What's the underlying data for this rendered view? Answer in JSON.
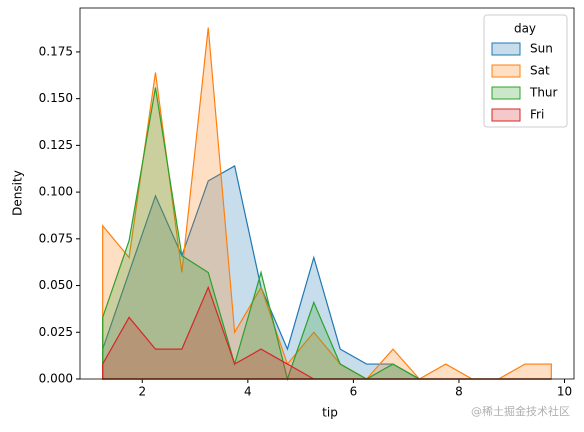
{
  "chart_data": {
    "type": "poly-histogram",
    "x_label": "tip",
    "y_label": "Density",
    "legend_title": "day",
    "legend_position": "upper right",
    "x": [
      1.25,
      1.75,
      2.25,
      2.75,
      3.25,
      3.75,
      4.25,
      4.75,
      5.25,
      5.75,
      6.25,
      6.75,
      7.25,
      7.75,
      8.25,
      8.75,
      9.25,
      9.75
    ],
    "series": [
      {
        "name": "Sun",
        "color": "#1f77b4",
        "values": [
          0.016,
          0.057,
          0.098,
          0.066,
          0.106,
          0.114,
          0.049,
          0.016,
          0.065,
          0.016,
          0.008,
          0.008,
          0,
          0,
          0,
          0,
          0,
          0
        ]
      },
      {
        "name": "Sat",
        "color": "#ff7f0e",
        "values": [
          0.082,
          0.065,
          0.164,
          0.057,
          0.188,
          0.025,
          0.049,
          0.008,
          0.025,
          0.008,
          0,
          0.016,
          0,
          0.008,
          0,
          0,
          0.008,
          0.008
        ]
      },
      {
        "name": "Thur",
        "color": "#2ca02c",
        "values": [
          0.033,
          0.074,
          0.156,
          0.066,
          0.057,
          0.008,
          0.057,
          0,
          0.041,
          0.008,
          0,
          0.008,
          0,
          0,
          0,
          0,
          0,
          0
        ]
      },
      {
        "name": "Fri",
        "color": "#d62728",
        "values": [
          0.008,
          0.033,
          0.016,
          0.016,
          0.049,
          0.008,
          0.016,
          0.008,
          0,
          0,
          0,
          0,
          0,
          0,
          0,
          0,
          0,
          0
        ]
      }
    ],
    "xlim": [
      0.82,
      10.18
    ],
    "ylim": [
      0,
      0.1985
    ],
    "xticks": [
      2,
      4,
      6,
      8,
      10
    ],
    "yticks": [
      {
        "value": 0,
        "label": "0.000"
      },
      {
        "value": 0.025,
        "label": "0.025"
      },
      {
        "value": 0.05,
        "label": "0.050"
      },
      {
        "value": 0.075,
        "label": "0.075"
      },
      {
        "value": 0.1,
        "label": "0.100"
      },
      {
        "value": 0.125,
        "label": "0.125"
      },
      {
        "value": 0.15,
        "label": "0.150"
      },
      {
        "value": 0.175,
        "label": "0.175"
      }
    ],
    "watermark": "@稀土掘金技术社区"
  }
}
